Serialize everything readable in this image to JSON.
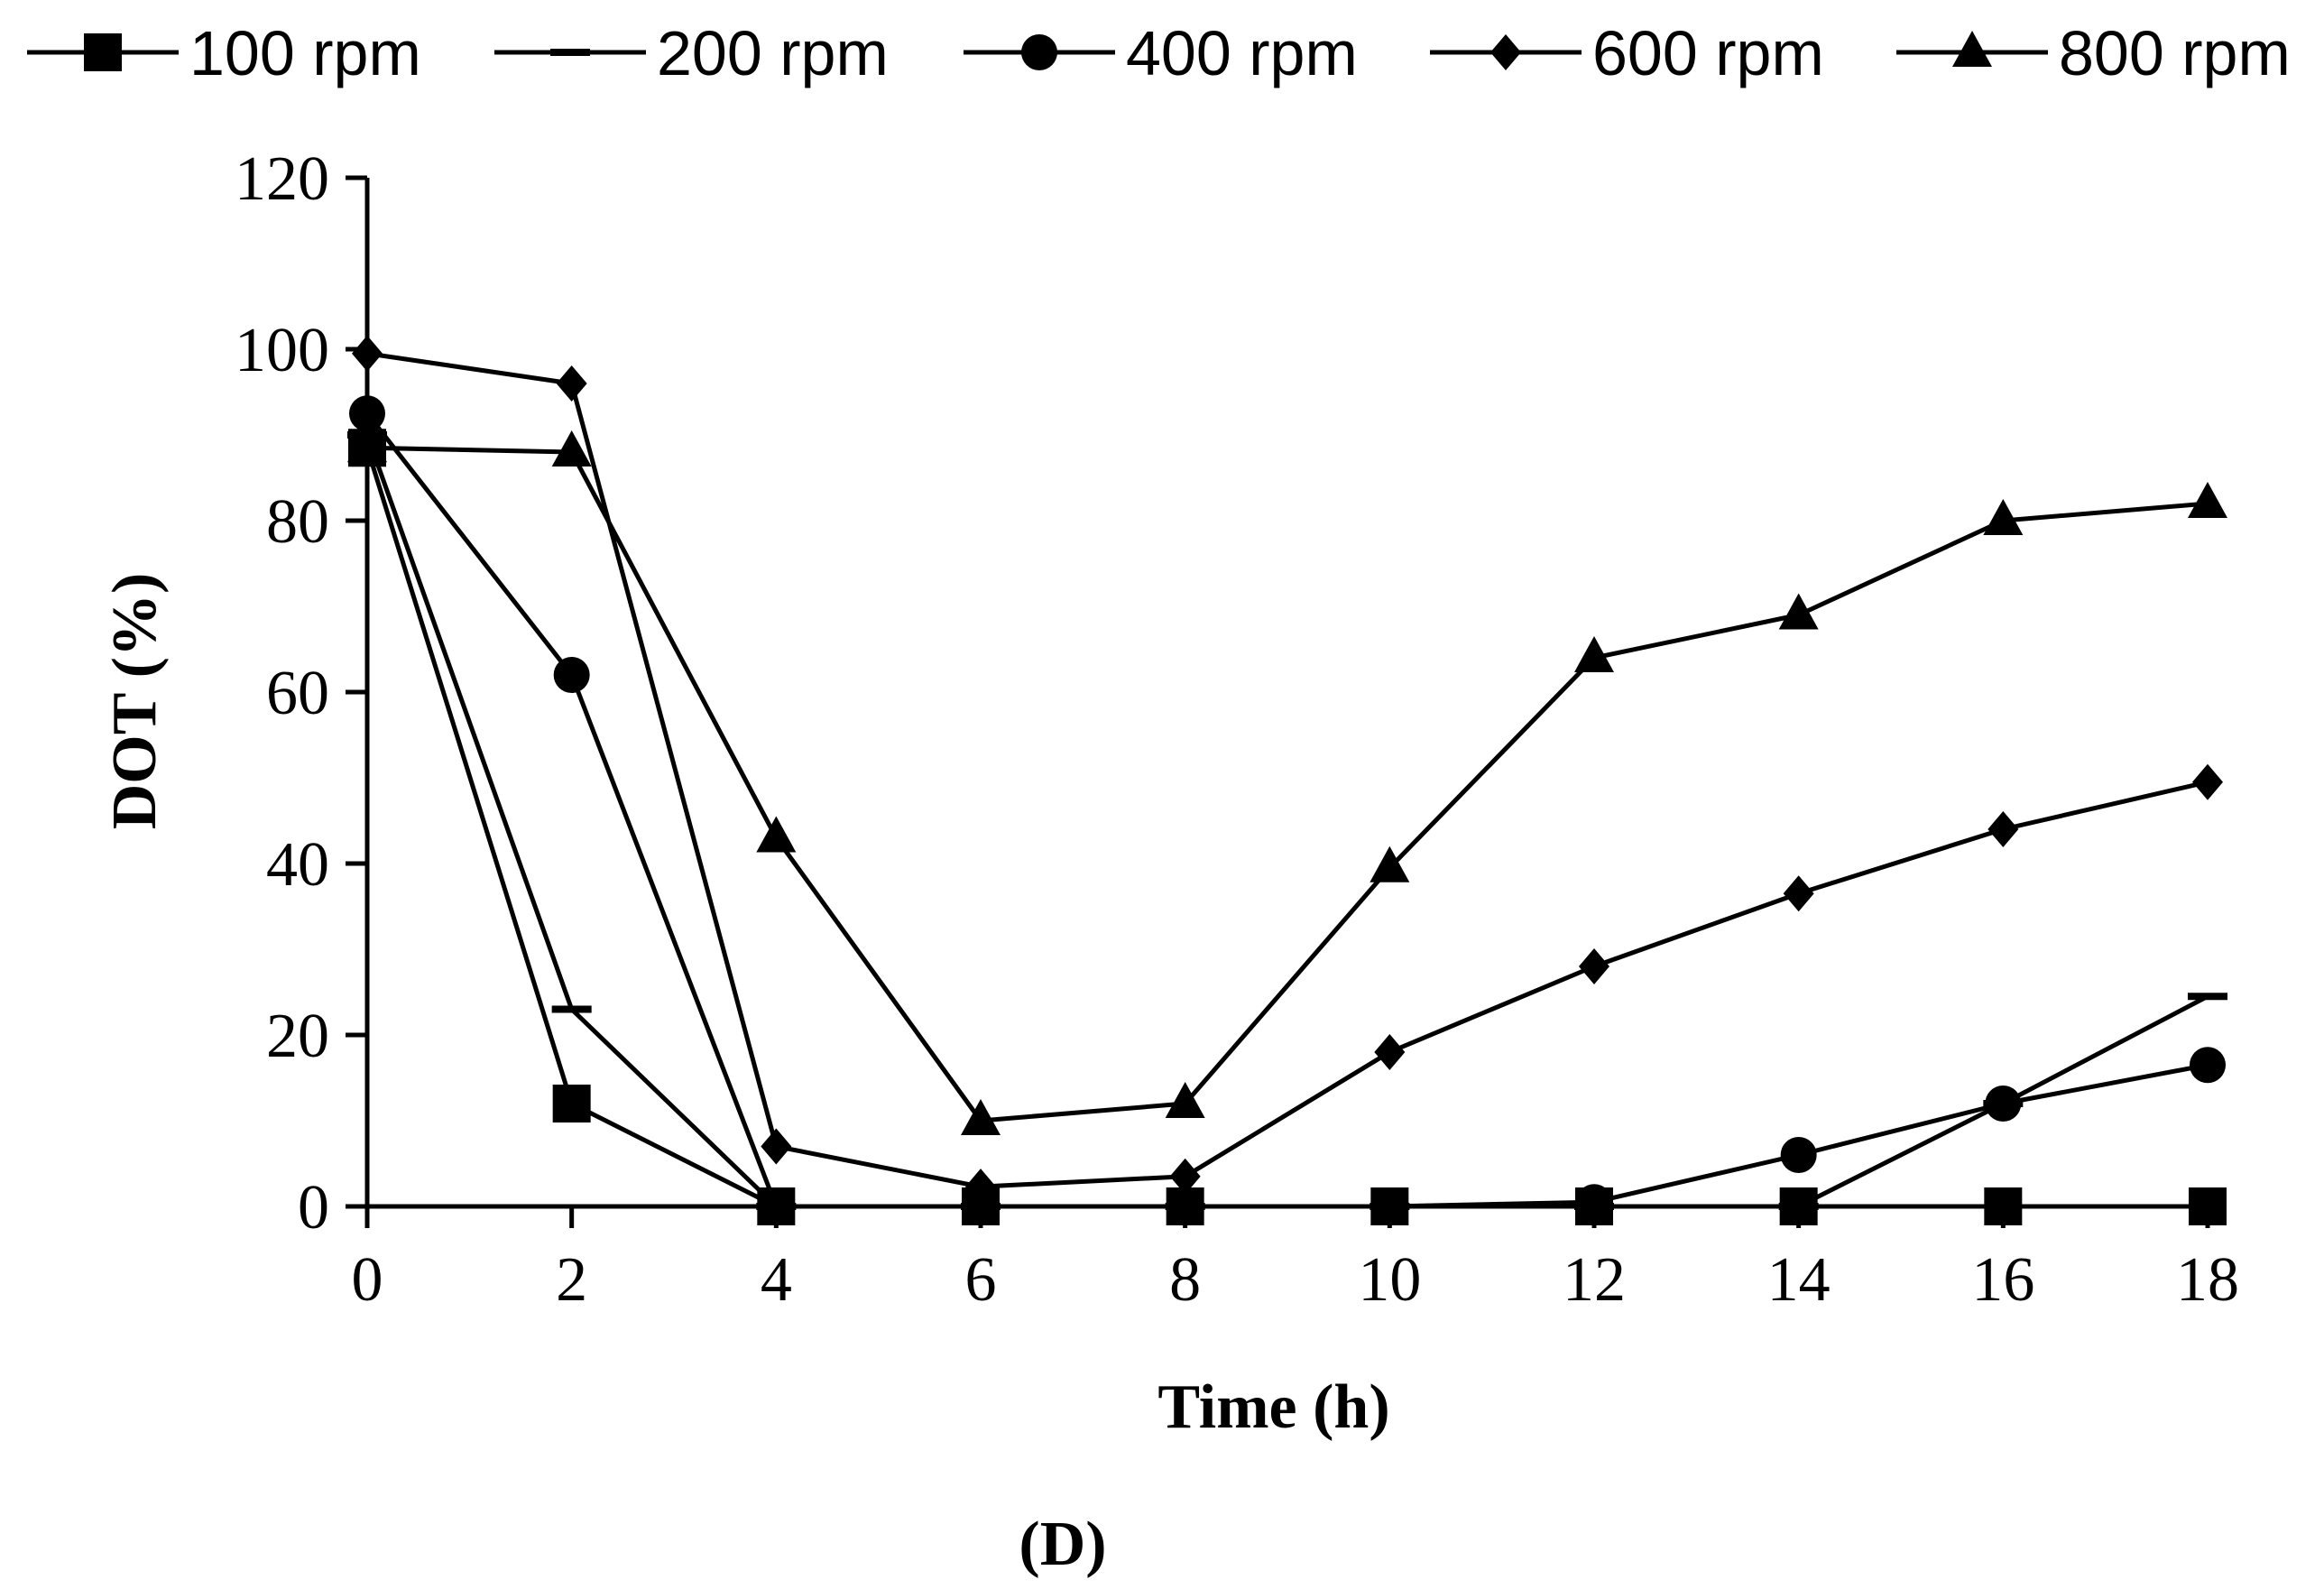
{
  "chart_data": {
    "type": "line",
    "title": "",
    "panel_label": "(D)",
    "xlabel": "Time (h)",
    "ylabel": "DOT (%)",
    "xlim": [
      0,
      18
    ],
    "ylim": [
      0,
      120
    ],
    "xticks": [
      0,
      2,
      4,
      6,
      8,
      10,
      12,
      14,
      16,
      18
    ],
    "yticks": [
      0,
      20,
      40,
      60,
      80,
      100,
      120
    ],
    "grid": false,
    "legend_position": "top",
    "series": [
      {
        "name": "100 rpm",
        "marker": "square",
        "x": [
          0,
          2,
          4,
          6,
          8,
          10,
          12,
          14,
          16,
          18
        ],
        "values": [
          88.5,
          12.0,
          0.0,
          0.0,
          0.0,
          0.0,
          0.0,
          0.0,
          0.0,
          0.0
        ]
      },
      {
        "name": "200 rpm",
        "marker": "dash",
        "x": [
          0,
          2,
          4,
          6,
          8,
          10,
          12,
          14,
          16,
          18
        ],
        "values": [
          90.0,
          23.0,
          0.0,
          0.0,
          0.0,
          0.0,
          0.0,
          0.0,
          12.0,
          24.5
        ]
      },
      {
        "name": "400 rpm",
        "marker": "circle",
        "x": [
          0,
          2,
          4,
          6,
          8,
          10,
          12,
          14,
          16,
          18
        ],
        "values": [
          92.5,
          62.0,
          0.0,
          0.0,
          0.0,
          0.0,
          0.5,
          6.0,
          12.0,
          16.5
        ]
      },
      {
        "name": "600 rpm",
        "marker": "diamond",
        "x": [
          0,
          2,
          4,
          6,
          8,
          10,
          12,
          14,
          16,
          18
        ],
        "values": [
          99.5,
          96.0,
          7.0,
          2.3,
          3.5,
          18.0,
          28.0,
          36.5,
          44.0,
          49.5
        ]
      },
      {
        "name": "800 rpm",
        "marker": "triangle",
        "x": [
          0,
          2,
          4,
          6,
          8,
          10,
          12,
          14,
          16,
          18
        ],
        "values": [
          88.5,
          88.0,
          43.0,
          10.0,
          12.0,
          39.5,
          64.0,
          69.0,
          80.0,
          82.0
        ]
      }
    ]
  }
}
